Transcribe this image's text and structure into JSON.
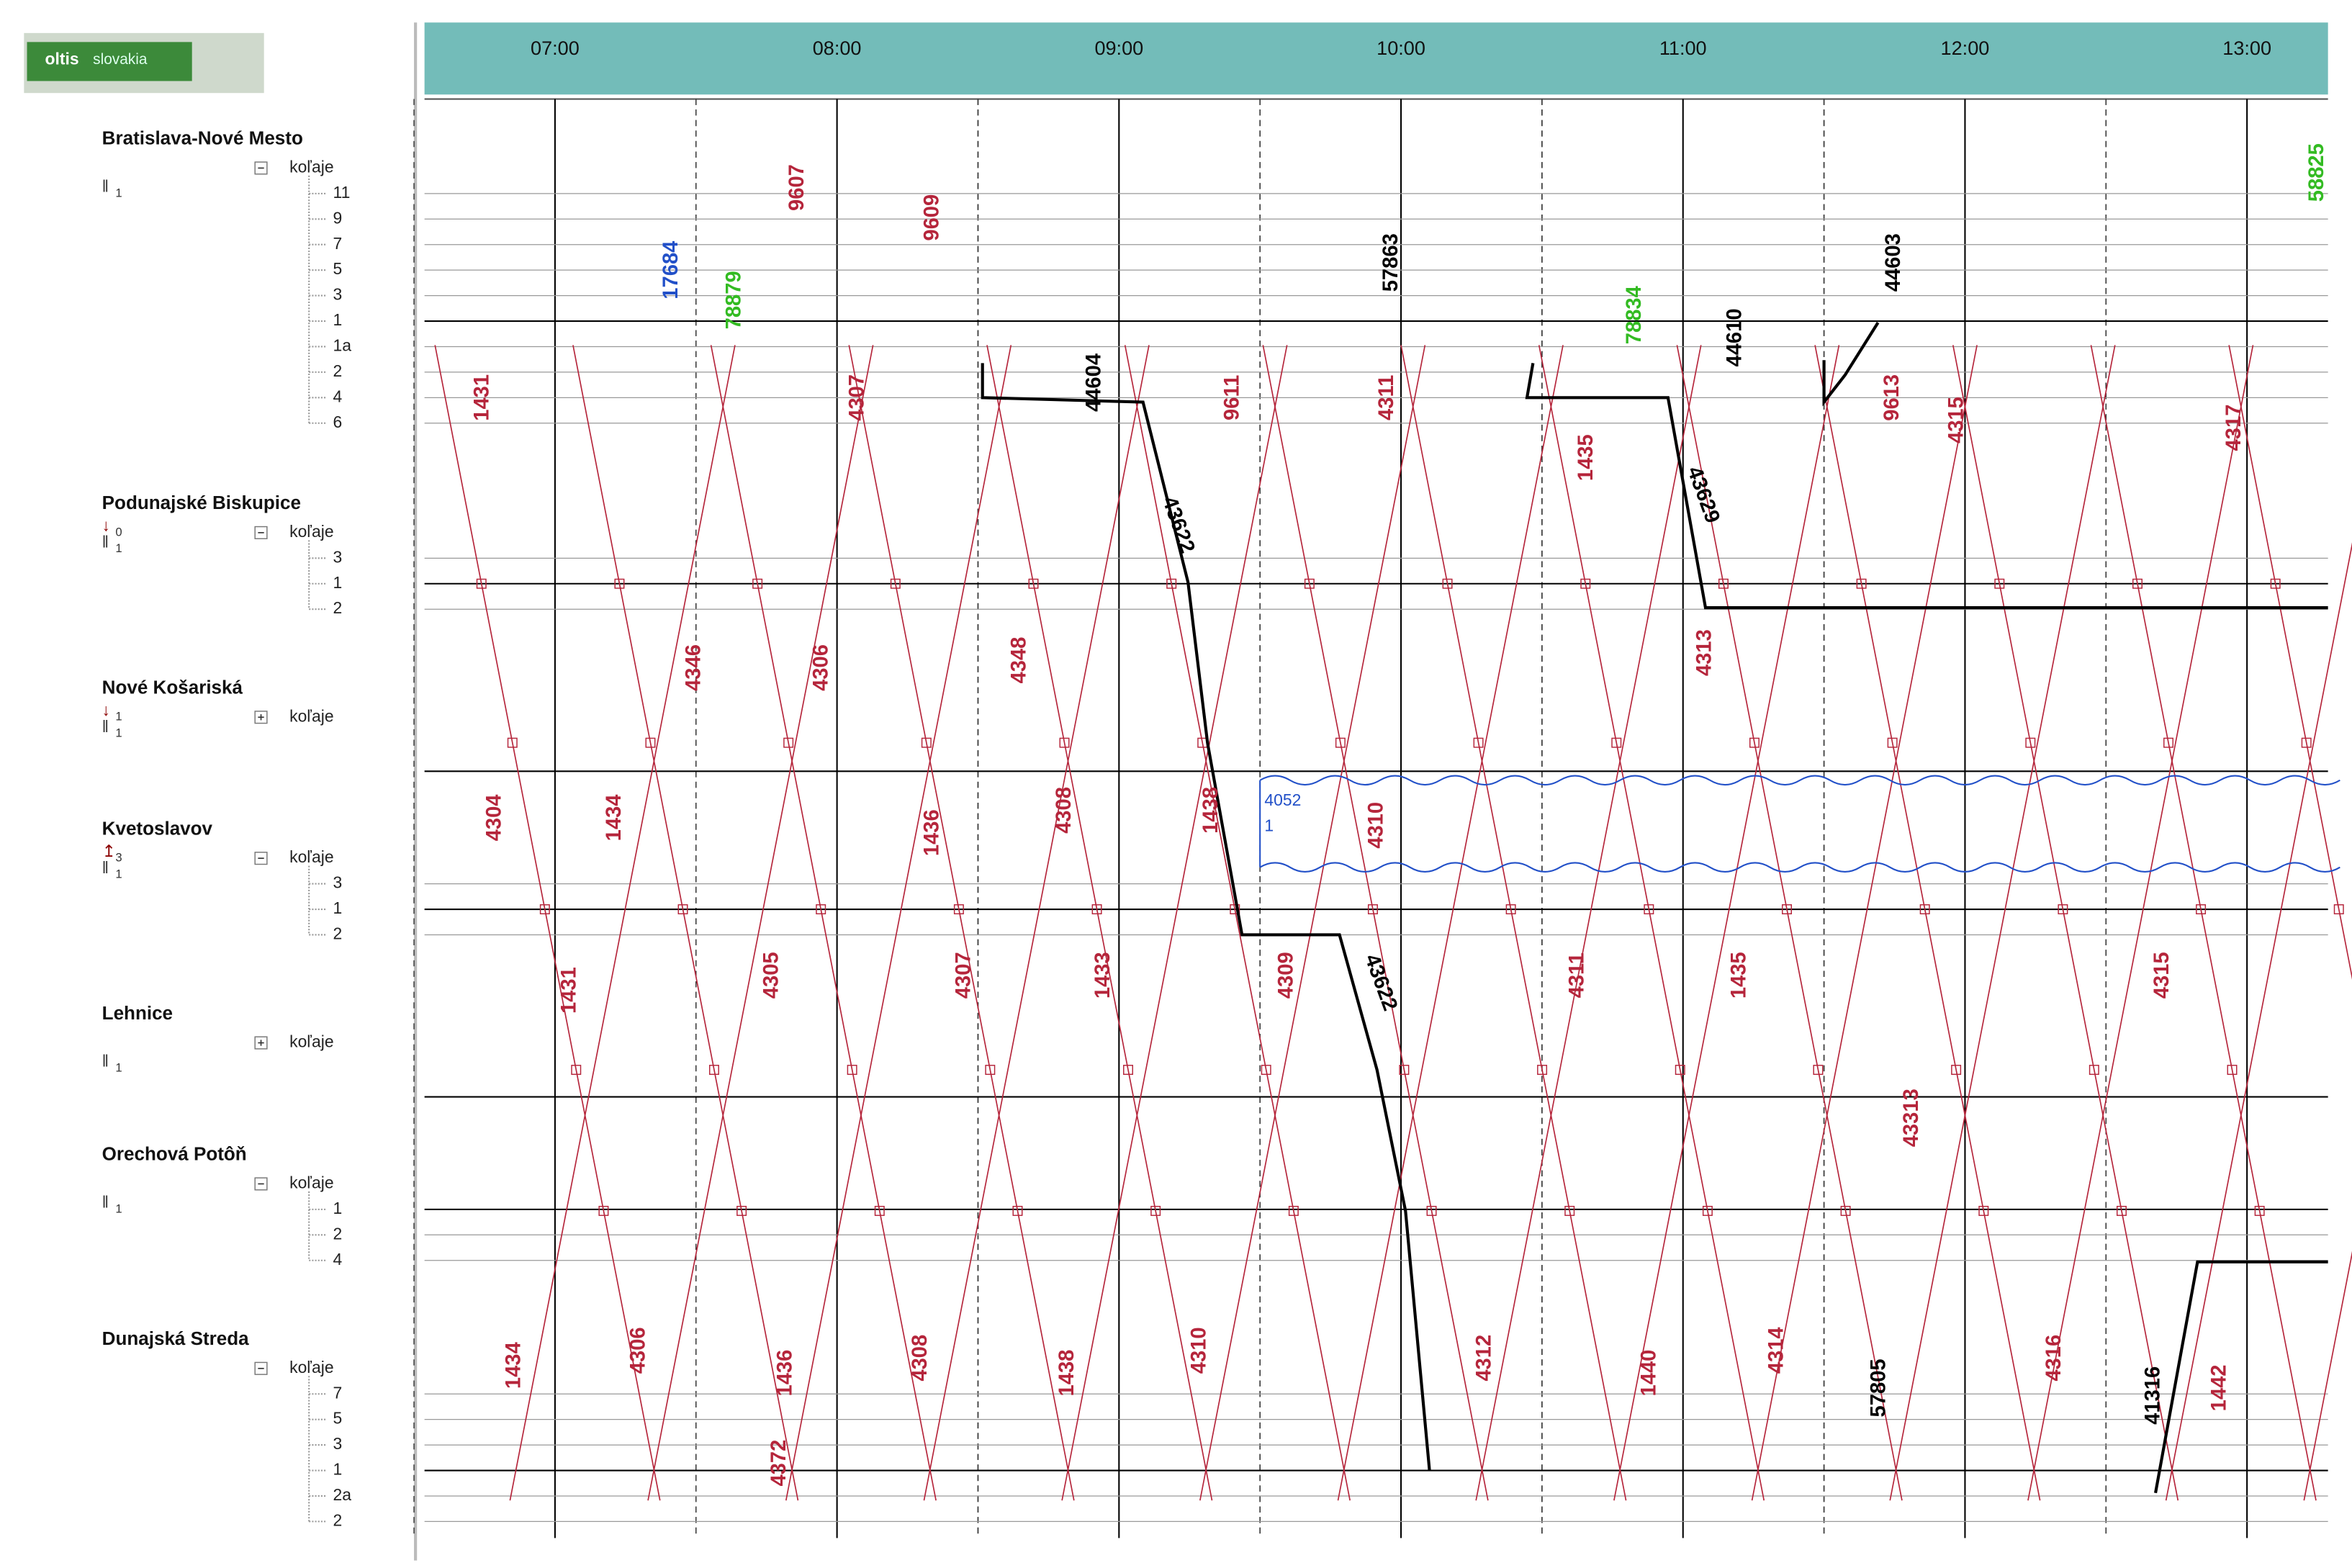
{
  "logo": {
    "brand": "oltis",
    "sub": "slovakia"
  },
  "timeline": {
    "hours": [
      "07:00",
      "08:00",
      "09:00",
      "10:00",
      "11:00",
      "12:00",
      "13:00"
    ]
  },
  "stations": [
    {
      "name": "Bratislava-Nové Mesto",
      "indicators": [
        {
          "symbol": "ǁ",
          "count": "1"
        }
      ],
      "group": "koľaje",
      "tracks": [
        "11",
        "9",
        "7",
        "5",
        "3",
        "1",
        "1a",
        "2",
        "4",
        "6"
      ]
    },
    {
      "name": "Podunajské Biskupice",
      "indicators": [
        {
          "symbol": "↓",
          "count": "0"
        },
        {
          "symbol": "ǁ",
          "count": "1"
        }
      ],
      "group": "koľaje",
      "tracks": [
        "3",
        "1",
        "2"
      ]
    },
    {
      "name": "Nové Košariská",
      "indicators": [
        {
          "symbol": "↓",
          "count": "1"
        },
        {
          "symbol": "ǁ",
          "count": "1"
        }
      ],
      "group": "koľaje",
      "tracks": []
    },
    {
      "name": "Kvetoslavov",
      "indicators": [
        {
          "symbol": "↥",
          "count": "3"
        },
        {
          "symbol": "ǁ",
          "count": "1"
        }
      ],
      "group": "koľaje",
      "tracks": [
        "3",
        "1",
        "2"
      ]
    },
    {
      "name": "Lehnice",
      "indicators": [
        {
          "symbol": "ǁ",
          "count": "1"
        }
      ],
      "group": "koľaje",
      "tracks": []
    },
    {
      "name": "Orechová Potôň",
      "indicators": [
        {
          "symbol": "ǁ",
          "count": "1"
        }
      ],
      "group": "koľaje",
      "tracks": [
        "1",
        "2",
        "4"
      ]
    },
    {
      "name": "Dunajská Streda",
      "indicators": [],
      "group": "koľaje",
      "tracks": [
        "7",
        "5",
        "3",
        "1",
        "2a",
        "2"
      ]
    }
  ],
  "closure": {
    "train": "4052",
    "track": "1"
  },
  "trains": [
    "1431",
    "4304",
    "1434",
    "4346",
    "4306",
    "4307",
    "4348",
    "4308",
    "1436",
    "1433",
    "4305",
    "4307",
    "4309",
    "4311",
    "1435",
    "4315",
    "4310",
    "1438",
    "4312",
    "1440",
    "4314",
    "4316",
    "1442",
    "4306",
    "1436",
    "4308",
    "1438",
    "4310",
    "1434",
    "4372",
    "9611",
    "4311",
    "1435",
    "9613",
    "4315",
    "4317",
    "4313",
    "9607",
    "9609",
    "43313",
    "1431",
    "43622",
    "43629",
    "44604",
    "57863",
    "44610",
    "44603",
    "57805",
    "41316",
    "43622",
    "78879",
    "58825",
    "78834",
    "17684"
  ]
}
